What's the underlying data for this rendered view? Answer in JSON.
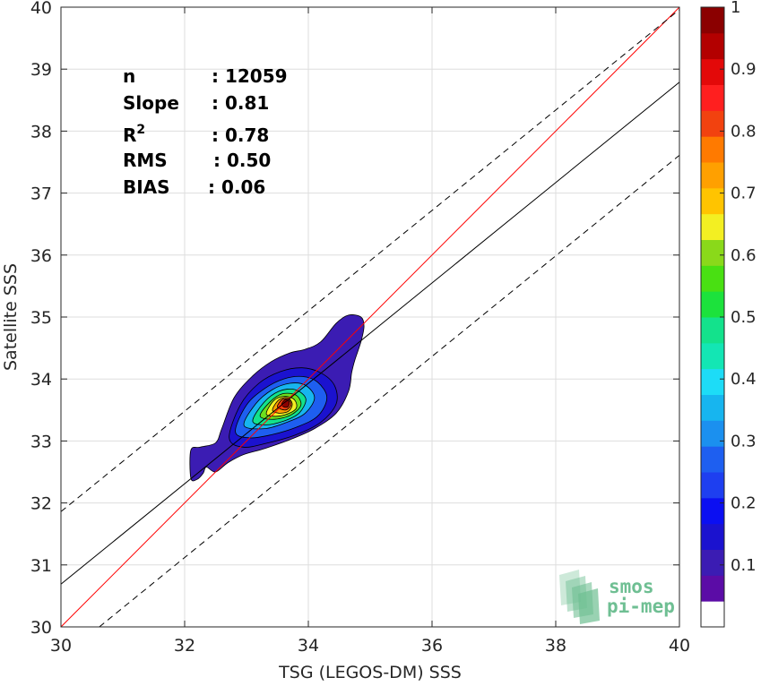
{
  "chart_data": {
    "type": "contour-scatter",
    "xlabel": "TSG (LEGOS-DM) SSS",
    "ylabel": "Satellite SSS",
    "xlim": [
      30,
      40
    ],
    "ylim": [
      30,
      40
    ],
    "x_ticks": [
      "30",
      "32",
      "34",
      "36",
      "38",
      "40"
    ],
    "y_ticks": [
      "30",
      "31",
      "32",
      "33",
      "34",
      "35",
      "36",
      "37",
      "38",
      "39",
      "40"
    ],
    "grid": true,
    "stats": [
      {
        "key": "n",
        "value": ": 12059"
      },
      {
        "key": "Slope",
        "value": ": 0.81"
      },
      {
        "key": "R",
        "sup": "2",
        "value": ": 0.78"
      },
      {
        "key": "RMS",
        "value": ": 0.50"
      },
      {
        "key": "BIAS",
        "value": ": 0.06"
      }
    ],
    "lines": [
      {
        "kind": "one-to-one",
        "color": "#ff0000",
        "x": [
          30,
          40
        ],
        "y": [
          30,
          40
        ]
      },
      {
        "kind": "regression",
        "color": "#000000",
        "x": [
          30,
          40
        ],
        "y": [
          30.69,
          38.79
        ]
      },
      {
        "kind": "upper-bound",
        "color": "#000000",
        "dash": true,
        "x": [
          30,
          40
        ],
        "y": [
          31.86,
          39.96
        ]
      },
      {
        "kind": "lower-bound",
        "color": "#000000",
        "dash": true,
        "x": [
          30.62,
          40
        ],
        "y": [
          30,
          37.61
        ]
      }
    ],
    "density_center": [
      33.65,
      33.62
    ],
    "contour_levels": [
      0.05,
      0.1,
      0.15,
      0.2,
      0.25,
      0.3,
      0.35,
      0.4,
      0.45,
      0.5,
      0.55,
      0.6,
      0.65,
      0.7,
      0.75,
      0.8,
      0.85,
      0.9,
      0.95,
      1.0
    ],
    "contour_rings": [
      {
        "level": 0.05,
        "color": "#3b1cb3",
        "points": [
          [
            32.1,
            32.4
          ],
          [
            32.1,
            32.85
          ],
          [
            32.25,
            32.9
          ],
          [
            32.5,
            32.97
          ],
          [
            32.6,
            33.2
          ],
          [
            32.8,
            33.7
          ],
          [
            33.1,
            34.05
          ],
          [
            33.4,
            34.28
          ],
          [
            33.7,
            34.42
          ],
          [
            33.95,
            34.48
          ],
          [
            34.2,
            34.6
          ],
          [
            34.45,
            34.9
          ],
          [
            34.65,
            35.03
          ],
          [
            34.85,
            35.0
          ],
          [
            34.9,
            34.85
          ],
          [
            34.85,
            34.6
          ],
          [
            34.75,
            34.3
          ],
          [
            34.7,
            34.1
          ],
          [
            34.65,
            33.8
          ],
          [
            34.45,
            33.45
          ],
          [
            34.1,
            33.2
          ],
          [
            33.7,
            33.02
          ],
          [
            33.3,
            32.88
          ],
          [
            32.95,
            32.78
          ],
          [
            32.7,
            32.65
          ],
          [
            32.5,
            32.5
          ],
          [
            32.35,
            32.58
          ],
          [
            32.3,
            32.48
          ],
          [
            32.2,
            32.38
          ]
        ]
      },
      {
        "level": 0.15,
        "color": "#1b12cf",
        "points": [
          [
            32.72,
            33.05
          ],
          [
            32.9,
            33.58
          ],
          [
            33.2,
            33.93
          ],
          [
            33.55,
            34.12
          ],
          [
            33.9,
            34.18
          ],
          [
            34.2,
            34.1
          ],
          [
            34.42,
            33.9
          ],
          [
            34.45,
            33.6
          ],
          [
            34.2,
            33.3
          ],
          [
            33.8,
            33.1
          ],
          [
            33.35,
            32.97
          ],
          [
            32.95,
            32.9
          ]
        ]
      },
      {
        "level": 0.25,
        "color": "#1e5ff0",
        "points": [
          [
            32.82,
            33.15
          ],
          [
            33.0,
            33.58
          ],
          [
            33.3,
            33.85
          ],
          [
            33.6,
            34.0
          ],
          [
            33.9,
            34.04
          ],
          [
            34.15,
            33.95
          ],
          [
            34.3,
            33.7
          ],
          [
            34.15,
            33.4
          ],
          [
            33.8,
            33.22
          ],
          [
            33.4,
            33.1
          ],
          [
            33.05,
            33.05
          ]
        ]
      },
      {
        "level": 0.35,
        "color": "#17b5ef",
        "points": [
          [
            32.96,
            33.25
          ],
          [
            33.15,
            33.6
          ],
          [
            33.42,
            33.83
          ],
          [
            33.7,
            33.93
          ],
          [
            33.95,
            33.9
          ],
          [
            34.1,
            33.7
          ],
          [
            33.95,
            33.45
          ],
          [
            33.65,
            33.3
          ],
          [
            33.3,
            33.2
          ]
        ]
      },
      {
        "level": 0.45,
        "color": "#13e28c",
        "points": [
          [
            33.1,
            33.32
          ],
          [
            33.28,
            33.62
          ],
          [
            33.52,
            33.8
          ],
          [
            33.78,
            33.83
          ],
          [
            33.96,
            33.68
          ],
          [
            33.85,
            33.45
          ],
          [
            33.6,
            33.32
          ],
          [
            33.32,
            33.26
          ]
        ]
      },
      {
        "level": 0.55,
        "color": "#6de01e",
        "points": [
          [
            33.22,
            33.4
          ],
          [
            33.38,
            33.63
          ],
          [
            33.58,
            33.76
          ],
          [
            33.8,
            33.74
          ],
          [
            33.88,
            33.58
          ],
          [
            33.72,
            33.42
          ],
          [
            33.45,
            33.35
          ]
        ]
      },
      {
        "level": 0.65,
        "color": "#f3ef22",
        "points": [
          [
            33.32,
            33.45
          ],
          [
            33.45,
            33.66
          ],
          [
            33.63,
            33.72
          ],
          [
            33.78,
            33.66
          ],
          [
            33.8,
            33.52
          ],
          [
            33.62,
            33.42
          ],
          [
            33.42,
            33.4
          ]
        ]
      },
      {
        "level": 0.75,
        "color": "#ffa000",
        "points": [
          [
            33.42,
            33.5
          ],
          [
            33.52,
            33.66
          ],
          [
            33.66,
            33.7
          ],
          [
            33.74,
            33.6
          ],
          [
            33.68,
            33.48
          ],
          [
            33.52,
            33.45
          ]
        ]
      },
      {
        "level": 0.85,
        "color": "#f2420f",
        "points": [
          [
            33.5,
            33.55
          ],
          [
            33.58,
            33.67
          ],
          [
            33.68,
            33.67
          ],
          [
            33.72,
            33.58
          ],
          [
            33.63,
            33.5
          ]
        ]
      },
      {
        "level": 0.95,
        "color": "#8b0000",
        "points": [
          [
            33.57,
            33.6
          ],
          [
            33.63,
            33.67
          ],
          [
            33.69,
            33.63
          ],
          [
            33.67,
            33.55
          ],
          [
            33.6,
            33.55
          ]
        ]
      }
    ],
    "colorbar": {
      "ticks": [
        "1",
        "0.9",
        "0.8",
        "0.7",
        "0.6",
        "0.5",
        "0.4",
        "0.3",
        "0.2",
        "0.1"
      ],
      "tick_values": [
        1,
        0.9,
        0.8,
        0.7,
        0.6,
        0.5,
        0.4,
        0.3,
        0.2,
        0.1
      ],
      "colors": [
        "#ffffff",
        "#5b0ca6",
        "#3b1cb3",
        "#1b12cf",
        "#0b0ff2",
        "#1e3ff0",
        "#1e5ff0",
        "#1b90ef",
        "#17b5ef",
        "#1ddcf7",
        "#13e6b4",
        "#13e28c",
        "#1ce23c",
        "#49e012",
        "#8ad91a",
        "#f3ef22",
        "#ffc400",
        "#ffa000",
        "#ff7a00",
        "#f2420f",
        "#ff1f1f",
        "#e30909",
        "#b30000",
        "#8b0000"
      ]
    }
  },
  "logo": {
    "line1": "smos",
    "line2": "pi-mep",
    "color": "#6fbf93"
  }
}
